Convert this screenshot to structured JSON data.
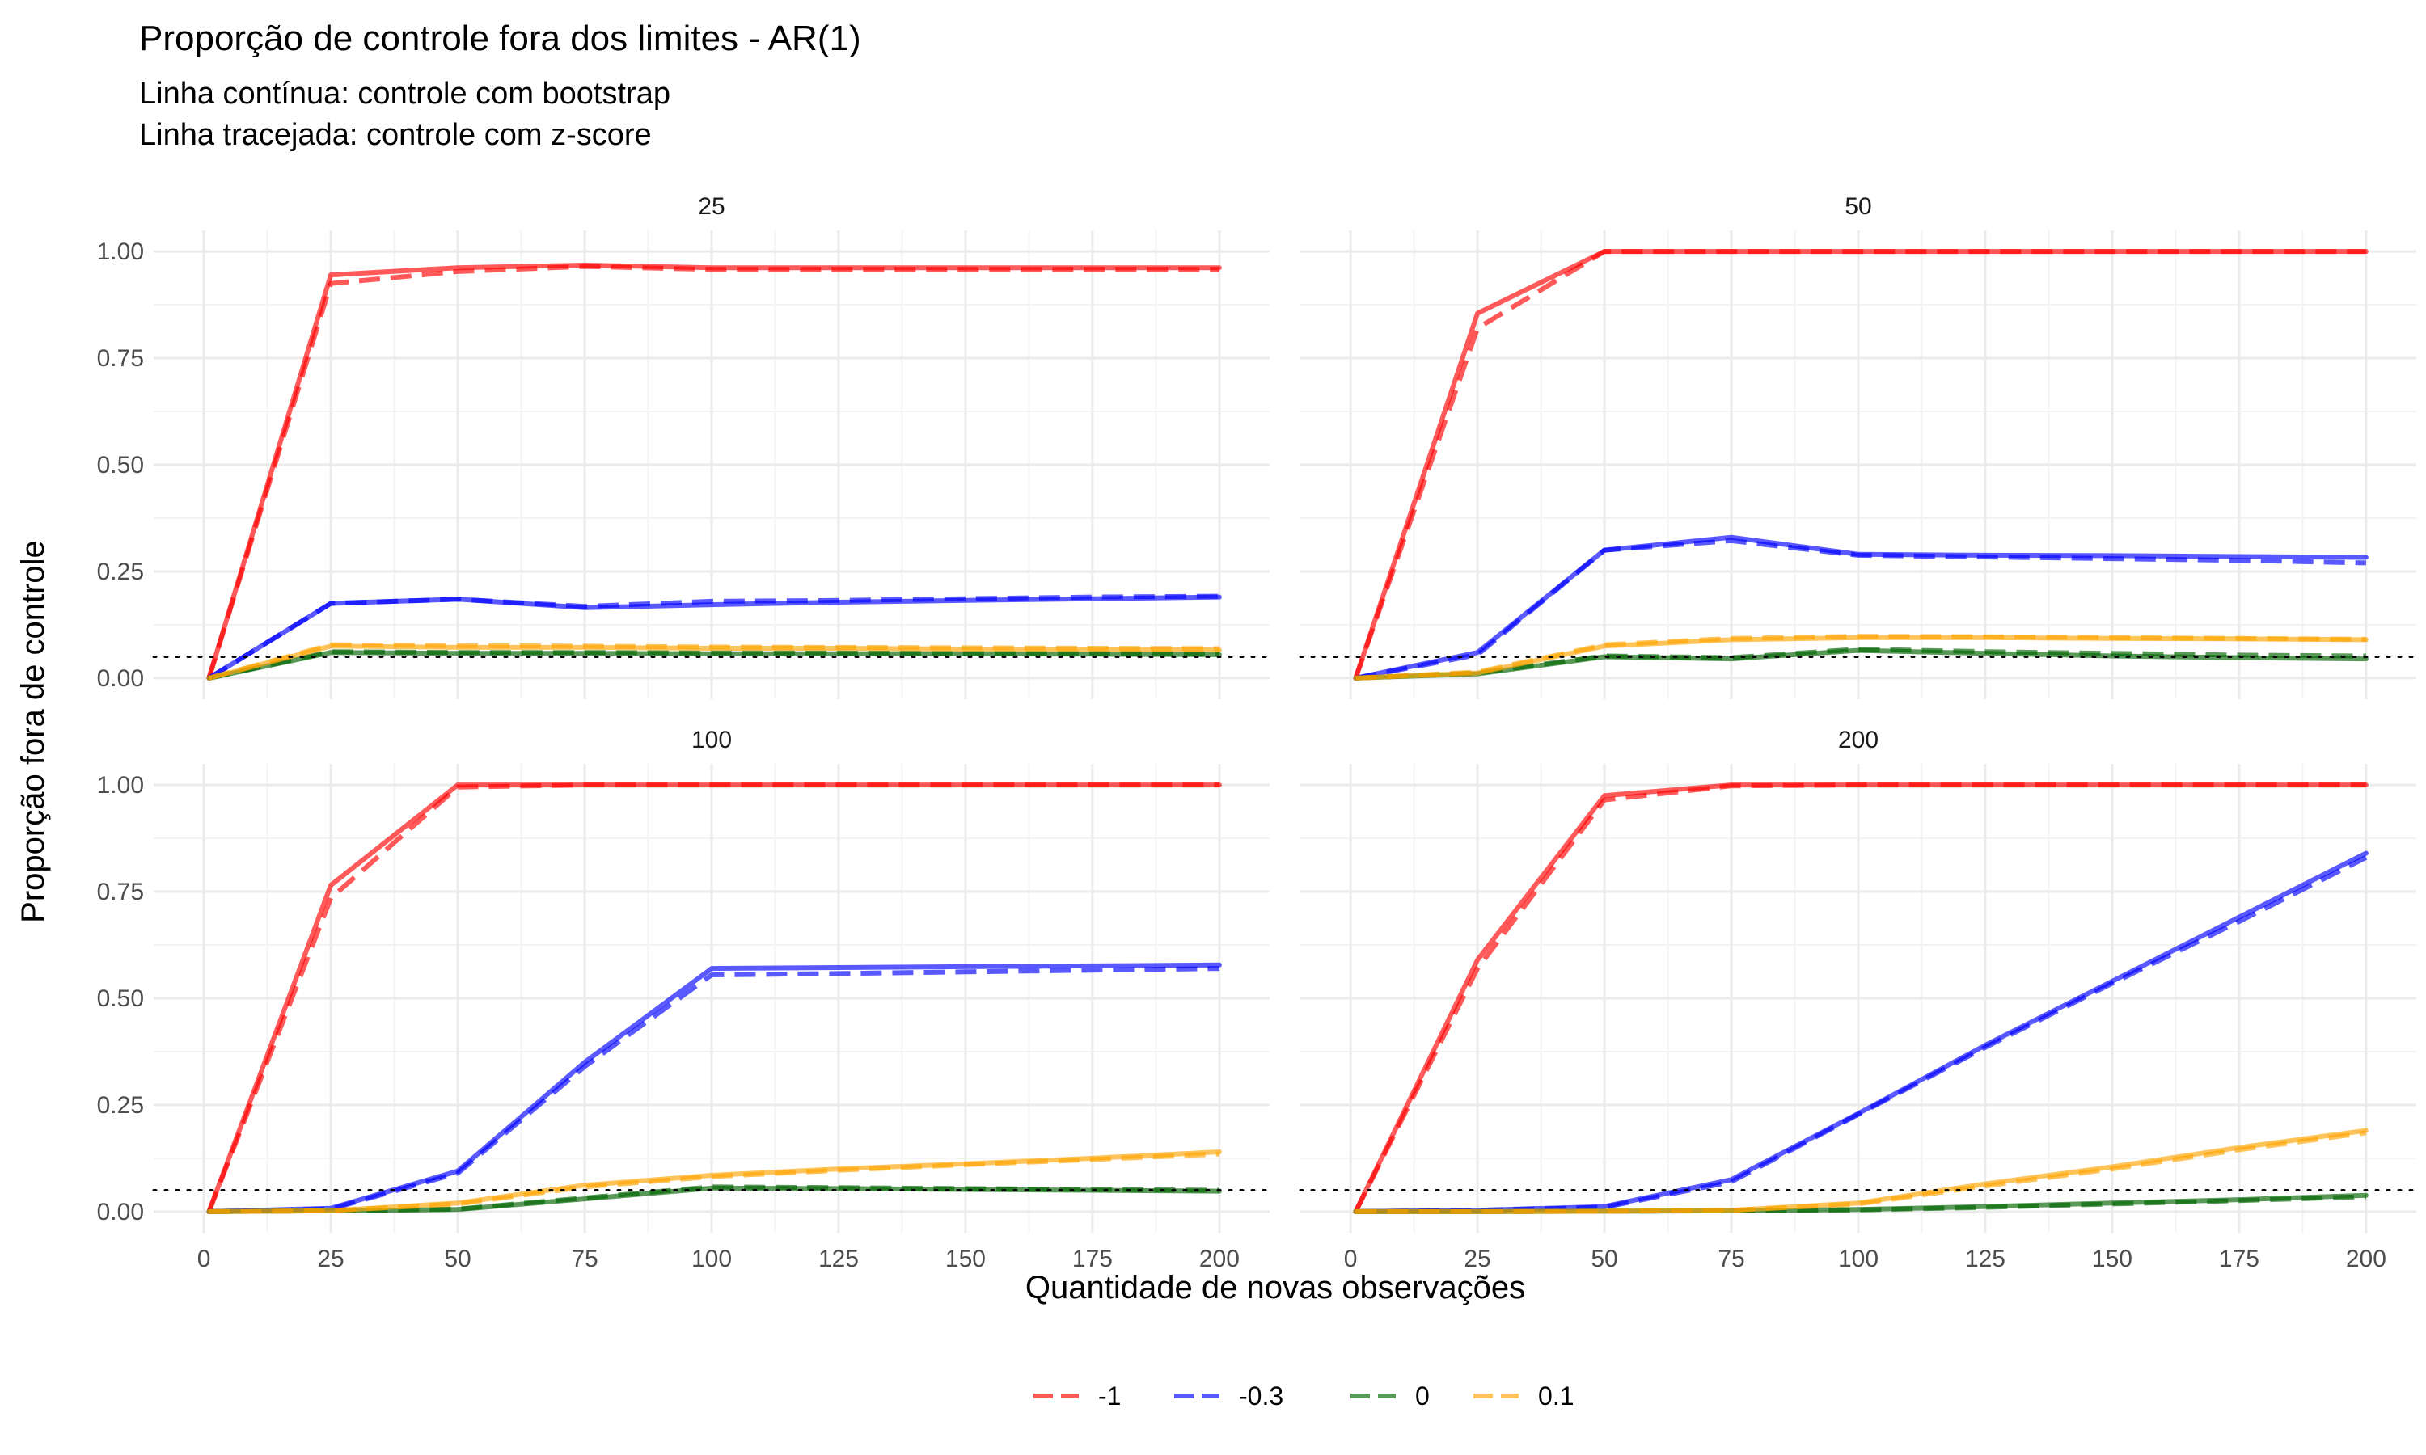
{
  "chart_data": {
    "type": "line",
    "title": "Proporção de controle fora dos limites - AR(1)",
    "subtitle_lines": [
      "Linha contínua: controle com bootstrap",
      "Linha tracejada: controle com z-score"
    ],
    "xlabel": "Quantidade de novas observações",
    "ylabel": "Proporção fora de controle",
    "x_ticks": [
      "0",
      "25",
      "50",
      "75",
      "100",
      "125",
      "150",
      "175",
      "200"
    ],
    "y_ticks": [
      "0.00",
      "0.25",
      "0.50",
      "0.75",
      "1.00"
    ],
    "xlim": [
      0,
      200
    ],
    "ylim": [
      0,
      1
    ],
    "reference_line": 0.05,
    "grid": true,
    "legend_position": "bottom",
    "legend": [
      {
        "label": "-1",
        "color": "#FF0000"
      },
      {
        "label": "-0.3",
        "color": "#0000FF"
      },
      {
        "label": "0",
        "color": "#006400"
      },
      {
        "label": "0.1",
        "color": "#FFA500"
      }
    ],
    "x": [
      1,
      25,
      50,
      75,
      100,
      125,
      150,
      175,
      200
    ],
    "panels": [
      {
        "label": "25",
        "series": [
          {
            "key": "-1",
            "color": "#FF0000",
            "bootstrap": [
              0,
              0.945,
              0.962,
              0.968,
              0.962,
              0.962,
              0.962,
              0.962,
              0.962
            ],
            "zscore": [
              0,
              0.925,
              0.953,
              0.965,
              0.958,
              0.958,
              0.958,
              0.958,
              0.958
            ]
          },
          {
            "key": "-0.3",
            "color": "#0000FF",
            "bootstrap": [
              0,
              0.175,
              0.185,
              0.165,
              0.172,
              0.178,
              0.182,
              0.186,
              0.19
            ],
            "zscore": [
              0,
              0.175,
              0.185,
              0.168,
              0.18,
              0.182,
              0.186,
              0.19,
              0.192
            ]
          },
          {
            "key": "0",
            "color": "#006400",
            "bootstrap": [
              0,
              0.06,
              0.058,
              0.058,
              0.057,
              0.057,
              0.057,
              0.056,
              0.055
            ],
            "zscore": [
              0,
              0.062,
              0.06,
              0.06,
              0.059,
              0.059,
              0.058,
              0.058,
              0.057
            ]
          },
          {
            "key": "0.1",
            "color": "#FFA500",
            "bootstrap": [
              0,
              0.075,
              0.072,
              0.072,
              0.07,
              0.07,
              0.068,
              0.067,
              0.066
            ],
            "zscore": [
              0,
              0.078,
              0.076,
              0.075,
              0.073,
              0.072,
              0.071,
              0.07,
              0.069
            ]
          }
        ]
      },
      {
        "label": "50",
        "series": [
          {
            "key": "-1",
            "color": "#FF0000",
            "bootstrap": [
              0,
              0.855,
              1,
              1,
              1,
              1,
              1,
              1,
              1
            ],
            "zscore": [
              0,
              0.82,
              1,
              1,
              1,
              1,
              1,
              1,
              1
            ]
          },
          {
            "key": "-0.3",
            "color": "#0000FF",
            "bootstrap": [
              0,
              0.06,
              0.3,
              0.33,
              0.29,
              0.288,
              0.287,
              0.285,
              0.283
            ],
            "zscore": [
              0,
              0.055,
              0.3,
              0.322,
              0.288,
              0.284,
              0.28,
              0.276,
              0.27
            ]
          },
          {
            "key": "0",
            "color": "#006400",
            "bootstrap": [
              0,
              0.01,
              0.05,
              0.045,
              0.065,
              0.058,
              0.052,
              0.048,
              0.045
            ],
            "zscore": [
              0,
              0.012,
              0.052,
              0.048,
              0.068,
              0.062,
              0.058,
              0.054,
              0.052
            ]
          },
          {
            "key": "0.1",
            "color": "#FFA500",
            "bootstrap": [
              0,
              0.012,
              0.075,
              0.09,
              0.095,
              0.095,
              0.093,
              0.092,
              0.09
            ],
            "zscore": [
              0,
              0.014,
              0.078,
              0.093,
              0.098,
              0.097,
              0.095,
              0.093,
              0.091
            ]
          }
        ]
      },
      {
        "label": "100",
        "series": [
          {
            "key": "-1",
            "color": "#FF0000",
            "bootstrap": [
              0,
              0.765,
              1,
              1,
              1,
              1,
              1,
              1,
              1
            ],
            "zscore": [
              0,
              0.735,
              0.995,
              1,
              1,
              1,
              1,
              1,
              1
            ]
          },
          {
            "key": "-0.3",
            "color": "#0000FF",
            "bootstrap": [
              0,
              0.008,
              0.095,
              0.35,
              0.57,
              0.572,
              0.574,
              0.576,
              0.578
            ],
            "zscore": [
              0,
              0.006,
              0.09,
              0.34,
              0.555,
              0.558,
              0.562,
              0.566,
              0.57
            ]
          },
          {
            "key": "0",
            "color": "#006400",
            "bootstrap": [
              0,
              0.002,
              0.005,
              0.03,
              0.055,
              0.054,
              0.052,
              0.05,
              0.048
            ],
            "zscore": [
              0,
              0.002,
              0.006,
              0.032,
              0.058,
              0.056,
              0.054,
              0.052,
              0.05
            ]
          },
          {
            "key": "0.1",
            "color": "#FFA500",
            "bootstrap": [
              0,
              0.002,
              0.02,
              0.062,
              0.085,
              0.1,
              0.112,
              0.125,
              0.14
            ],
            "zscore": [
              0,
              0.002,
              0.018,
              0.058,
              0.082,
              0.097,
              0.11,
              0.122,
              0.135
            ]
          }
        ]
      },
      {
        "label": "200",
        "series": [
          {
            "key": "-1",
            "color": "#FF0000",
            "bootstrap": [
              0,
              0.59,
              0.975,
              1,
              1,
              1,
              1,
              1,
              1
            ],
            "zscore": [
              0,
              0.57,
              0.965,
              0.998,
              1,
              1,
              1,
              1,
              1
            ]
          },
          {
            "key": "-0.3",
            "color": "#0000FF",
            "bootstrap": [
              0,
              0.003,
              0.012,
              0.075,
              0.23,
              0.39,
              0.54,
              0.69,
              0.84
            ],
            "zscore": [
              0,
              0.003,
              0.01,
              0.07,
              0.228,
              0.385,
              0.535,
              0.68,
              0.83
            ]
          },
          {
            "key": "0",
            "color": "#006400",
            "bootstrap": [
              0,
              0,
              0.001,
              0.002,
              0.005,
              0.012,
              0.02,
              0.028,
              0.038
            ],
            "zscore": [
              0,
              0,
              0.001,
              0.002,
              0.004,
              0.01,
              0.018,
              0.026,
              0.035
            ]
          },
          {
            "key": "0.1",
            "color": "#FFA500",
            "bootstrap": [
              0,
              0,
              0.001,
              0.003,
              0.02,
              0.065,
              0.105,
              0.15,
              0.19
            ],
            "zscore": [
              0,
              0,
              0.001,
              0.003,
              0.018,
              0.06,
              0.1,
              0.145,
              0.185
            ]
          }
        ]
      }
    ]
  }
}
